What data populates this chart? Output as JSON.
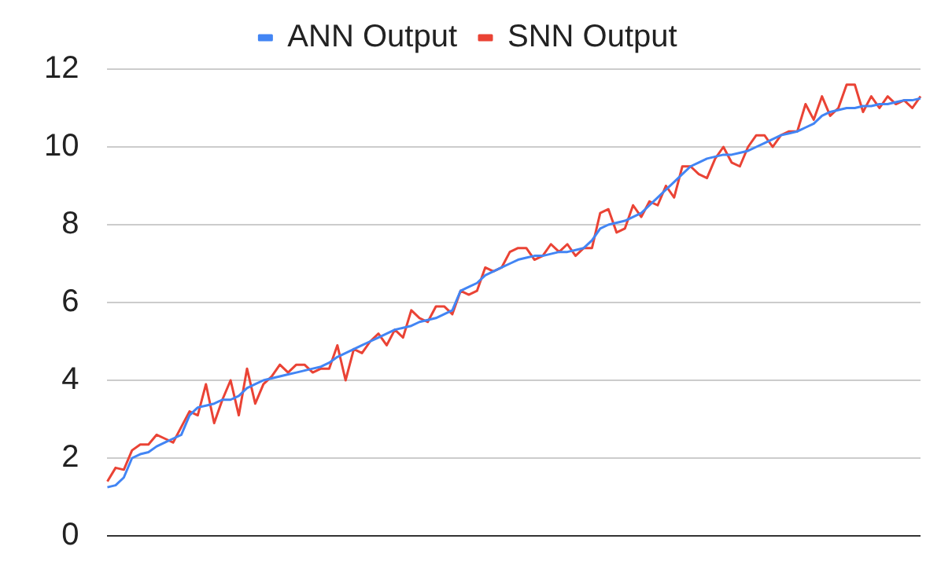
{
  "chart_data": {
    "type": "line",
    "categories": [
      null,
      null,
      null,
      null,
      null,
      null,
      null,
      null,
      null,
      null,
      null,
      null,
      null,
      null,
      null,
      null,
      null,
      null,
      null,
      null,
      null,
      null,
      null,
      null,
      null,
      null,
      null,
      null,
      null,
      null,
      null,
      null,
      null,
      null,
      null,
      null,
      null,
      null,
      null,
      null,
      null,
      null,
      null,
      null,
      null,
      null,
      null,
      null,
      null,
      null,
      null,
      null,
      null,
      null,
      null,
      null,
      null,
      null,
      null,
      null,
      null,
      null,
      null,
      null,
      null,
      null,
      null,
      null,
      null,
      null,
      null,
      null,
      null,
      null,
      null,
      null,
      null,
      null,
      null,
      null,
      null,
      null,
      null,
      null,
      null,
      null,
      null,
      null,
      null,
      null,
      null,
      null,
      null,
      null,
      null,
      null,
      null,
      null,
      null,
      null
    ],
    "series": [
      {
        "name": "ANN Output",
        "color": "#4285f4",
        "values": [
          1.25,
          1.3,
          1.5,
          2.0,
          2.1,
          2.15,
          2.3,
          2.4,
          2.5,
          2.6,
          3.1,
          3.3,
          3.35,
          3.4,
          3.5,
          3.5,
          3.6,
          3.8,
          3.9,
          4.0,
          4.05,
          4.1,
          4.15,
          4.2,
          4.25,
          4.3,
          4.35,
          4.45,
          4.6,
          4.7,
          4.8,
          4.9,
          5.0,
          5.1,
          5.2,
          5.3,
          5.35,
          5.4,
          5.5,
          5.55,
          5.6,
          5.7,
          5.8,
          6.3,
          6.4,
          6.5,
          6.7,
          6.8,
          6.9,
          7.0,
          7.1,
          7.15,
          7.2,
          7.2,
          7.25,
          7.3,
          7.3,
          7.35,
          7.4,
          7.6,
          7.9,
          8.0,
          8.05,
          8.1,
          8.2,
          8.3,
          8.5,
          8.7,
          8.9,
          9.1,
          9.3,
          9.5,
          9.6,
          9.7,
          9.75,
          9.8,
          9.8,
          9.85,
          9.9,
          10.0,
          10.1,
          10.2,
          10.3,
          10.35,
          10.4,
          10.5,
          10.6,
          10.8,
          10.9,
          10.95,
          11.0,
          11.0,
          11.05,
          11.05,
          11.1,
          11.1,
          11.15,
          11.2,
          11.2,
          11.25
        ]
      },
      {
        "name": "SNN Output",
        "color": "#ea4335",
        "values": [
          1.4,
          1.75,
          1.7,
          2.2,
          2.35,
          2.35,
          2.6,
          2.5,
          2.4,
          2.8,
          3.2,
          3.1,
          3.9,
          2.9,
          3.5,
          4.0,
          3.1,
          4.3,
          3.4,
          3.9,
          4.1,
          4.4,
          4.2,
          4.4,
          4.4,
          4.2,
          4.3,
          4.3,
          4.9,
          4.0,
          4.8,
          4.7,
          5.0,
          5.2,
          4.9,
          5.3,
          5.1,
          5.8,
          5.6,
          5.5,
          5.9,
          5.9,
          5.7,
          6.3,
          6.2,
          6.3,
          6.9,
          6.8,
          6.9,
          7.3,
          7.4,
          7.4,
          7.1,
          7.2,
          7.5,
          7.3,
          7.5,
          7.2,
          7.4,
          7.4,
          8.3,
          8.4,
          7.8,
          7.9,
          8.5,
          8.2,
          8.6,
          8.5,
          9.0,
          8.7,
          9.5,
          9.5,
          9.3,
          9.2,
          9.7,
          10.0,
          9.6,
          9.5,
          10.0,
          10.3,
          10.3,
          10.0,
          10.3,
          10.4,
          10.4,
          11.1,
          10.7,
          11.3,
          10.8,
          11.0,
          11.6,
          11.6,
          10.9,
          11.3,
          11.0,
          11.3,
          11.1,
          11.2,
          11.0,
          11.3
        ]
      }
    ],
    "ylim": [
      0,
      12
    ],
    "yticks": [
      0,
      2,
      4,
      6,
      8,
      10,
      12
    ],
    "grid": "y",
    "legend": "top",
    "tick_labels": "y",
    "marker": "none",
    "line_style": "solid"
  }
}
